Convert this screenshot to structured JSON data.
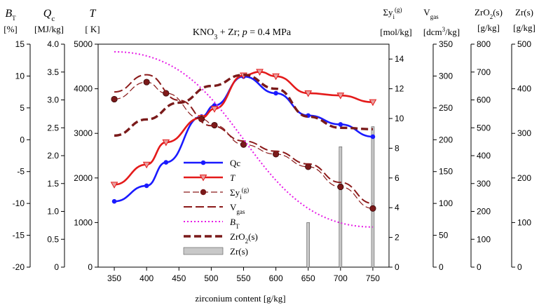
{
  "chart_data": {
    "type": "line",
    "title": "KNO3 + Zr;  p = 0.4 MPa",
    "xlabel": "zirconium content [g/kg]",
    "x_ticks": [
      350,
      400,
      450,
      500,
      550,
      600,
      650,
      700,
      750
    ],
    "xlim": [
      325,
      775
    ],
    "axes": {
      "BT": {
        "symbol": "B",
        "sub": "T",
        "unit": "[%]",
        "ticks": [
          -20,
          -15,
          -10,
          -5,
          0,
          5,
          10,
          15
        ],
        "range": [
          -20,
          15
        ]
      },
      "Qc": {
        "symbol": "Q",
        "sub": "c",
        "unit": "[MJ/kg]",
        "ticks": [
          "0",
          "0.5",
          "1.0",
          "1.5",
          "2.0",
          "2.5",
          "3.0",
          "3.5",
          "4.0"
        ],
        "range": [
          0,
          4
        ]
      },
      "T": {
        "symbol": "T",
        "sub": "",
        "unit": "[ K]",
        "ticks": [
          0,
          1000,
          2000,
          3000,
          4000,
          5000
        ],
        "range": [
          0,
          5000
        ]
      },
      "SigY": {
        "label": "Σy",
        "sub": "i",
        "sup": "(g)",
        "unit": "[mol/kg]",
        "ticks": [
          0,
          2,
          4,
          6,
          8,
          10,
          12,
          14
        ],
        "range": [
          0,
          15
        ]
      },
      "Vgas": {
        "label": "V",
        "sub": "gas",
        "unit": "[dcm3/kg]",
        "ticks": [
          0,
          50,
          100,
          150,
          200,
          250,
          300,
          350
        ],
        "range": [
          0,
          350
        ]
      },
      "ZrO2": {
        "label": "ZrO2(s)",
        "unit": "[g/kg]",
        "ticks": [
          0,
          100,
          200,
          300,
          400,
          500,
          600,
          700,
          800
        ],
        "range": [
          0,
          800
        ]
      },
      "Zr": {
        "label": "Zr(s)",
        "unit": "[g/kg]",
        "ticks": [
          0,
          100,
          200,
          300,
          400,
          500
        ],
        "range": [
          0,
          500
        ]
      }
    },
    "series": [
      {
        "name": "Qc",
        "axis": "Qc",
        "color": "#1a1aff",
        "style": "solid",
        "marker": "circle",
        "x": [
          350,
          400,
          430,
          485,
          505,
          550,
          600,
          650,
          700,
          750
        ],
        "y": [
          1.18,
          1.46,
          1.88,
          2.7,
          2.9,
          3.42,
          3.12,
          2.72,
          2.56,
          2.34
        ]
      },
      {
        "name": "T",
        "axis": "T",
        "color": "#e41a1a",
        "style": "solid",
        "marker": "triangle",
        "x": [
          350,
          400,
          430,
          485,
          505,
          550,
          575,
          600,
          650,
          700,
          750
        ],
        "y": [
          1850,
          2300,
          2800,
          3350,
          3550,
          4300,
          4380,
          4280,
          3900,
          3850,
          3700
        ]
      },
      {
        "name": "Σyi(g)",
        "axis": "SigY",
        "color": "#8b1a1a",
        "style": "dashed-thin",
        "marker": "circle-dark",
        "x": [
          350,
          400,
          430,
          485,
          505,
          550,
          600,
          650,
          700,
          750
        ],
        "y": [
          11.3,
          12.45,
          11.7,
          9.97,
          9.55,
          8.25,
          7.6,
          6.75,
          5.4,
          3.95
        ]
      },
      {
        "name": "Vgas",
        "axis": "Vgas",
        "color": "#8b1a1a",
        "style": "dashed-medium",
        "marker": "none",
        "x": [
          350,
          400,
          450,
          500,
          550,
          600,
          650,
          700,
          750
        ],
        "y": [
          275,
          302,
          262,
          222,
          198,
          182,
          162,
          133,
          100
        ]
      },
      {
        "name": "BT",
        "axis": "BT",
        "color": "#e61ae6",
        "style": "dotted",
        "marker": "none",
        "x": [
          350,
          750
        ],
        "y": [
          13.8,
          -13.7
        ]
      },
      {
        "name": "ZrO2(s)",
        "axis": "ZrO2",
        "color": "#7a1a1a",
        "style": "dashed-thick",
        "marker": "none",
        "x": [
          350,
          400,
          450,
          500,
          550,
          600,
          650,
          700,
          750
        ],
        "y": [
          472,
          530,
          590,
          650,
          690,
          640,
          540,
          500,
          495
        ]
      }
    ],
    "bars": {
      "name": "Zr(s)",
      "axis": "Zr",
      "color": "#c8c8c8",
      "x": [
        650,
        700,
        750
      ],
      "y": [
        100,
        270,
        315
      ]
    },
    "legend": {
      "position": "center-left",
      "entries": [
        "Qc",
        "T",
        "Σyi(g)",
        "Vgas",
        "BT",
        "ZrO2(s)",
        "Zr(s)"
      ]
    }
  }
}
